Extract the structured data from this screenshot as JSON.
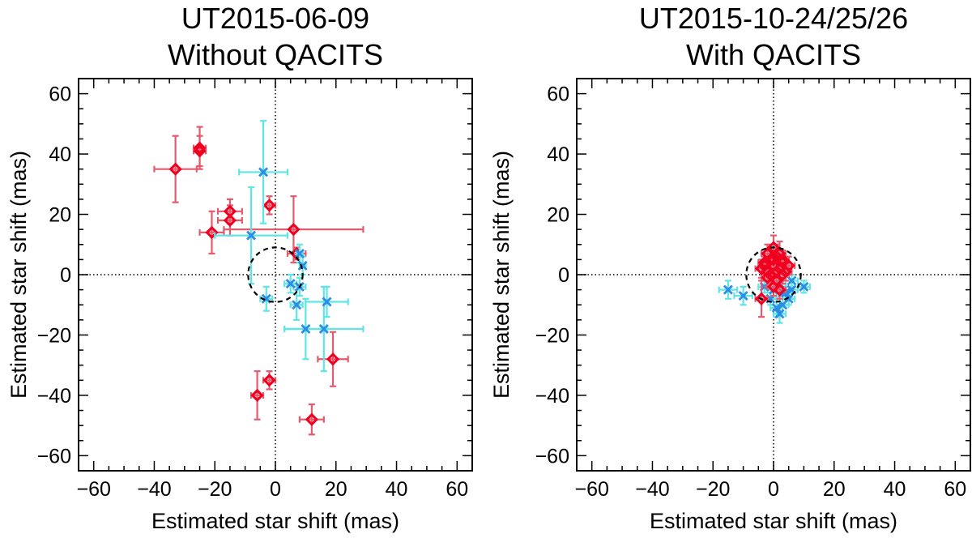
{
  "colors": {
    "red": "#f0001e",
    "red_err": "#e65a6e",
    "blue": "#2d8ce6",
    "blue_err": "#5ee6e6",
    "axis": "#000000"
  },
  "chart_data": [
    {
      "type": "scatter",
      "title_lines": [
        "UT2015-06-09",
        "Without QACITS"
      ],
      "xlabel": "Estimated star shift (mas)",
      "ylabel": "Estimated star shift (mas)",
      "xlim": [
        -65,
        65
      ],
      "ylim": [
        -65,
        65
      ],
      "xticks": [
        -60,
        -40,
        -20,
        0,
        20,
        40,
        60
      ],
      "yticks": [
        -60,
        -40,
        -20,
        0,
        20,
        40,
        60
      ],
      "xtick_labels": [
        "−60",
        "−40",
        "−20",
        "0",
        "20",
        "40",
        "60"
      ],
      "ytick_labels": [
        "−60",
        "−40",
        "−20",
        "0",
        "20",
        "40",
        "60"
      ],
      "reference_circle_radius": 9,
      "series": [
        {
          "name": "red-diamonds",
          "marker": "diamond",
          "points": [
            {
              "x": -25,
              "y": 42,
              "xerr": 2,
              "yerr": 7
            },
            {
              "x": -25,
              "y": 41,
              "xerr": 2,
              "yerr": 5
            },
            {
              "x": -33,
              "y": 35,
              "xerr": 7,
              "yerr": 11
            },
            {
              "x": -2,
              "y": 23,
              "xerr": 2,
              "yerr": 3
            },
            {
              "x": -15,
              "y": 21,
              "xerr": 4,
              "yerr": 4
            },
            {
              "x": -15,
              "y": 18,
              "xerr": 4,
              "yerr": 5
            },
            {
              "x": -21,
              "y": 14,
              "xerr": 4,
              "yerr": 7
            },
            {
              "x": 6,
              "y": 15,
              "xerr": 23,
              "yerr": 11
            },
            {
              "x": 7,
              "y": 7,
              "xerr": 3,
              "yerr": 2
            },
            {
              "x": 19,
              "y": -28,
              "xerr": 5,
              "yerr": 9
            },
            {
              "x": -2,
              "y": -35,
              "xerr": 2,
              "yerr": 3
            },
            {
              "x": -6,
              "y": -40,
              "xerr": 2,
              "yerr": 8
            },
            {
              "x": 12,
              "y": -48,
              "xerr": 4,
              "yerr": 5
            }
          ]
        },
        {
          "name": "blue-crosses",
          "marker": "x",
          "points": [
            {
              "x": -4,
              "y": 34,
              "xerr": 8,
              "yerr": 17
            },
            {
              "x": -8,
              "y": 13,
              "xerr": 12,
              "yerr": 16
            },
            {
              "x": 8,
              "y": 7,
              "xerr": 1,
              "yerr": 3
            },
            {
              "x": 9,
              "y": 3,
              "xerr": 1,
              "yerr": 3
            },
            {
              "x": -3,
              "y": -8,
              "xerr": 2,
              "yerr": 4
            },
            {
              "x": 5,
              "y": -3,
              "xerr": 2,
              "yerr": 3
            },
            {
              "x": 8,
              "y": -4,
              "xerr": 2,
              "yerr": 3
            },
            {
              "x": 7,
              "y": -10,
              "xerr": 2,
              "yerr": 5
            },
            {
              "x": 17,
              "y": -9,
              "xerr": 7,
              "yerr": 5
            },
            {
              "x": 10,
              "y": -18,
              "xerr": 7,
              "yerr": 10
            },
            {
              "x": 16,
              "y": -18,
              "xerr": 13,
              "yerr": 14
            }
          ]
        }
      ]
    },
    {
      "type": "scatter",
      "title_lines": [
        "UT2015-10-24/25/26",
        "With QACITS"
      ],
      "xlabel": "Estimated star shift (mas)",
      "ylabel": "Estimated star shift (mas)",
      "xlim": [
        -65,
        65
      ],
      "ylim": [
        -65,
        65
      ],
      "xticks": [
        -60,
        -40,
        -20,
        0,
        20,
        40,
        60
      ],
      "yticks": [
        -60,
        -40,
        -20,
        0,
        20,
        40,
        60
      ],
      "xtick_labels": [
        "−60",
        "−40",
        "−20",
        "0",
        "20",
        "40",
        "60"
      ],
      "ytick_labels": [
        "−60",
        "−40",
        "−20",
        "0",
        "20",
        "40",
        "60"
      ],
      "reference_circle_radius": 9,
      "series": [
        {
          "name": "blue-crosses",
          "marker": "x",
          "points": [
            {
              "x": -15,
              "y": -5,
              "xerr": 3,
              "yerr": 3
            },
            {
              "x": -10,
              "y": -7,
              "xerr": 3,
              "yerr": 3
            },
            {
              "x": 10,
              "y": -4,
              "xerr": 2,
              "yerr": 2
            },
            {
              "x": 6,
              "y": -5,
              "xerr": 2,
              "yerr": 3
            },
            {
              "x": 5,
              "y": -8,
              "xerr": 2,
              "yerr": 2
            },
            {
              "x": 3,
              "y": -10,
              "xerr": 2,
              "yerr": 3
            },
            {
              "x": 1,
              "y": -11,
              "xerr": 2,
              "yerr": 3
            },
            {
              "x": 2,
              "y": -13,
              "xerr": 2,
              "yerr": 3
            },
            {
              "x": 4,
              "y": -6,
              "xerr": 2,
              "yerr": 2
            },
            {
              "x": -1,
              "y": -8,
              "xerr": 2,
              "yerr": 2
            },
            {
              "x": 0,
              "y": -5,
              "xerr": 2,
              "yerr": 2
            },
            {
              "x": 2,
              "y": -3,
              "xerr": 2,
              "yerr": 2
            },
            {
              "x": -3,
              "y": -4,
              "xerr": 2,
              "yerr": 2
            },
            {
              "x": 6,
              "y": -2,
              "xerr": 2,
              "yerr": 2
            },
            {
              "x": 3,
              "y": -6,
              "xerr": 2,
              "yerr": 2
            }
          ]
        },
        {
          "name": "red-diamonds",
          "marker": "diamond",
          "points": [
            {
              "x": -4,
              "y": 2,
              "xerr": 2,
              "yerr": 3
            },
            {
              "x": -3,
              "y": 4,
              "xerr": 2,
              "yerr": 3
            },
            {
              "x": -2,
              "y": 1,
              "xerr": 2,
              "yerr": 3
            },
            {
              "x": -1,
              "y": 5,
              "xerr": 2,
              "yerr": 4
            },
            {
              "x": 0,
              "y": 3,
              "xerr": 2,
              "yerr": 3
            },
            {
              "x": 1,
              "y": 6,
              "xerr": 2,
              "yerr": 4
            },
            {
              "x": 2,
              "y": 2,
              "xerr": 2,
              "yerr": 3
            },
            {
              "x": 3,
              "y": 4,
              "xerr": 2,
              "yerr": 3
            },
            {
              "x": 4,
              "y": 1,
              "xerr": 2,
              "yerr": 3
            },
            {
              "x": 2,
              "y": 7,
              "xerr": 2,
              "yerr": 4
            },
            {
              "x": 0,
              "y": 9,
              "xerr": 2,
              "yerr": 4
            },
            {
              "x": -2,
              "y": -1,
              "xerr": 2,
              "yerr": 3
            },
            {
              "x": 1,
              "y": -2,
              "xerr": 2,
              "yerr": 3
            },
            {
              "x": 3,
              "y": 0,
              "xerr": 2,
              "yerr": 3
            },
            {
              "x": -1,
              "y": 0,
              "xerr": 2,
              "yerr": 3
            },
            {
              "x": 0,
              "y": -4,
              "xerr": 2,
              "yerr": 3
            },
            {
              "x": 2,
              "y": -5,
              "xerr": 2,
              "yerr": 3
            },
            {
              "x": -4,
              "y": -8,
              "xerr": 2,
              "yerr": 6
            },
            {
              "x": 5,
              "y": 3,
              "xerr": 2,
              "yerr": 3
            },
            {
              "x": -3,
              "y": 3,
              "xerr": 2,
              "yerr": 3
            },
            {
              "x": 1,
              "y": 1,
              "xerr": 2,
              "yerr": 3
            },
            {
              "x": 0,
              "y": 5,
              "xerr": 2,
              "yerr": 3
            },
            {
              "x": -2,
              "y": 7,
              "xerr": 2,
              "yerr": 3
            },
            {
              "x": 3,
              "y": 5,
              "xerr": 2,
              "yerr": 3
            }
          ]
        }
      ]
    }
  ]
}
